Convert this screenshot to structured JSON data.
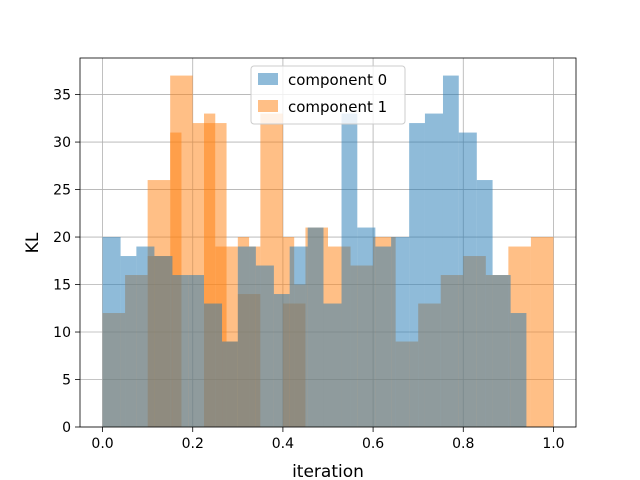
{
  "chart_data": {
    "type": "bar",
    "xlabel": "iteration",
    "ylabel": "KL",
    "xlim": [
      -0.05,
      1.05
    ],
    "ylim": [
      0,
      38.85
    ],
    "grid": true,
    "legend_position": "top-center",
    "bin_width": 0.05,
    "bin_starts": [
      0.0,
      0.05,
      0.1,
      0.15,
      0.2,
      0.25,
      0.3,
      0.35,
      0.4,
      0.45,
      0.5,
      0.55,
      0.6,
      0.65,
      0.7,
      0.75,
      0.8,
      0.85,
      0.9,
      0.95
    ],
    "series": [
      {
        "name": "component 0",
        "color": "#1f77b4",
        "alpha": 0.5,
        "bins": [
          {
            "x0": 0.0,
            "x1": 0.04,
            "v": 20
          },
          {
            "x0": 0.04,
            "x1": 0.075,
            "v": 18
          },
          {
            "x0": 0.075,
            "x1": 0.115,
            "v": 19
          },
          {
            "x0": 0.115,
            "x1": 0.155,
            "v": 18
          },
          {
            "x0": 0.155,
            "x1": 0.19,
            "v": 16
          },
          {
            "x0": 0.19,
            "x1": 0.225,
            "v": 16
          },
          {
            "x0": 0.225,
            "x1": 0.265,
            "v": 13
          },
          {
            "x0": 0.265,
            "x1": 0.3,
            "v": 9
          },
          {
            "x0": 0.3,
            "x1": 0.34,
            "v": 19
          },
          {
            "x0": 0.34,
            "x1": 0.38,
            "v": 17
          },
          {
            "x0": 0.38,
            "x1": 0.415,
            "v": 14
          },
          {
            "x0": 0.415,
            "x1": 0.455,
            "v": 19
          },
          {
            "x0": 0.455,
            "x1": 0.49,
            "v": 21
          },
          {
            "x0": 0.49,
            "x1": 0.53,
            "v": 13
          },
          {
            "x0": 0.53,
            "x1": 0.565,
            "v": 33
          },
          {
            "x0": 0.565,
            "x1": 0.605,
            "v": 21
          },
          {
            "x0": 0.605,
            "x1": 0.64,
            "v": 19
          },
          {
            "x0": 0.64,
            "x1": 0.68,
            "v": 20
          },
          {
            "x0": 0.68,
            "x1": 0.715,
            "v": 32
          },
          {
            "x0": 0.715,
            "x1": 0.755,
            "v": 33
          },
          {
            "x0": 0.755,
            "x1": 0.79,
            "v": 37
          },
          {
            "x0": 0.79,
            "x1": 0.83,
            "v": 31
          },
          {
            "x0": 0.83,
            "x1": 0.865,
            "v": 26
          },
          {
            "x0": 0.865,
            "x1": 0.905,
            "v": 16
          },
          {
            "x0": 0.905,
            "x1": 0.94,
            "v": 12
          }
        ]
      },
      {
        "name": "component 1",
        "color": "#ff7f0e",
        "alpha": 0.5,
        "values": [
          12,
          16,
          26,
          37,
          32,
          19,
          14,
          33,
          13,
          21,
          19,
          17,
          20,
          9,
          13,
          16,
          18,
          16,
          19,
          20
        ],
        "sub_bars": [
          {
            "x0": 0.1,
            "x1": 0.15,
            "v": 18
          },
          {
            "x0": 0.15,
            "x1": 0.175,
            "v": 31
          },
          {
            "x0": 0.225,
            "x1": 0.25,
            "v": 33
          },
          {
            "x0": 0.25,
            "x1": 0.275,
            "v": 32
          },
          {
            "x0": 0.275,
            "x1": 0.3,
            "v": 9
          },
          {
            "x0": 0.3,
            "x1": 0.325,
            "v": 20
          },
          {
            "x0": 0.325,
            "x1": 0.35,
            "v": 19
          },
          {
            "x0": 0.4,
            "x1": 0.425,
            "v": 20
          },
          {
            "x0": 0.425,
            "x1": 0.45,
            "v": 15
          }
        ]
      }
    ]
  },
  "x_ticks": [
    "0.0",
    "0.2",
    "0.4",
    "0.6",
    "0.8",
    "1.0"
  ],
  "y_ticks": [
    "0",
    "5",
    "10",
    "15",
    "20",
    "25",
    "30",
    "35"
  ],
  "legend": {
    "items": [
      {
        "label": "component 0",
        "color": "#1f77b4"
      },
      {
        "label": "component 1",
        "color": "#ff7f0e"
      }
    ]
  }
}
